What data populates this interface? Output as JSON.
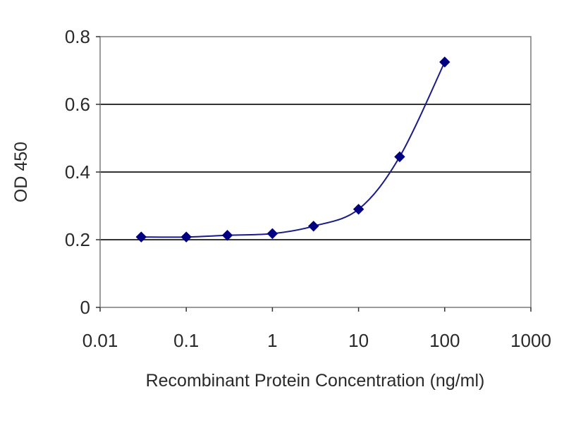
{
  "chart_data": {
    "type": "scatter",
    "title": "",
    "xlabel": "Recombinant Protein Concentration (ng/ml)",
    "ylabel": "OD 450",
    "x_scale": "log",
    "xlim": [
      0.01,
      1000
    ],
    "ylim": [
      0,
      0.8
    ],
    "x_ticks": [
      "0.01",
      "0.1",
      "1",
      "10",
      "100",
      "1000"
    ],
    "y_ticks": [
      "0",
      "0.2",
      "0.4",
      "0.6",
      "0.8"
    ],
    "grid": "horizontal",
    "legend": "none",
    "series": [
      {
        "x": [
          0.03,
          0.1,
          0.3,
          1,
          3,
          10,
          30,
          100
        ],
        "y": [
          0.208,
          0.208,
          0.213,
          0.218,
          0.24,
          0.29,
          0.445,
          0.725
        ],
        "color": "#000080",
        "marker": "diamond",
        "fit_line": true
      }
    ]
  }
}
